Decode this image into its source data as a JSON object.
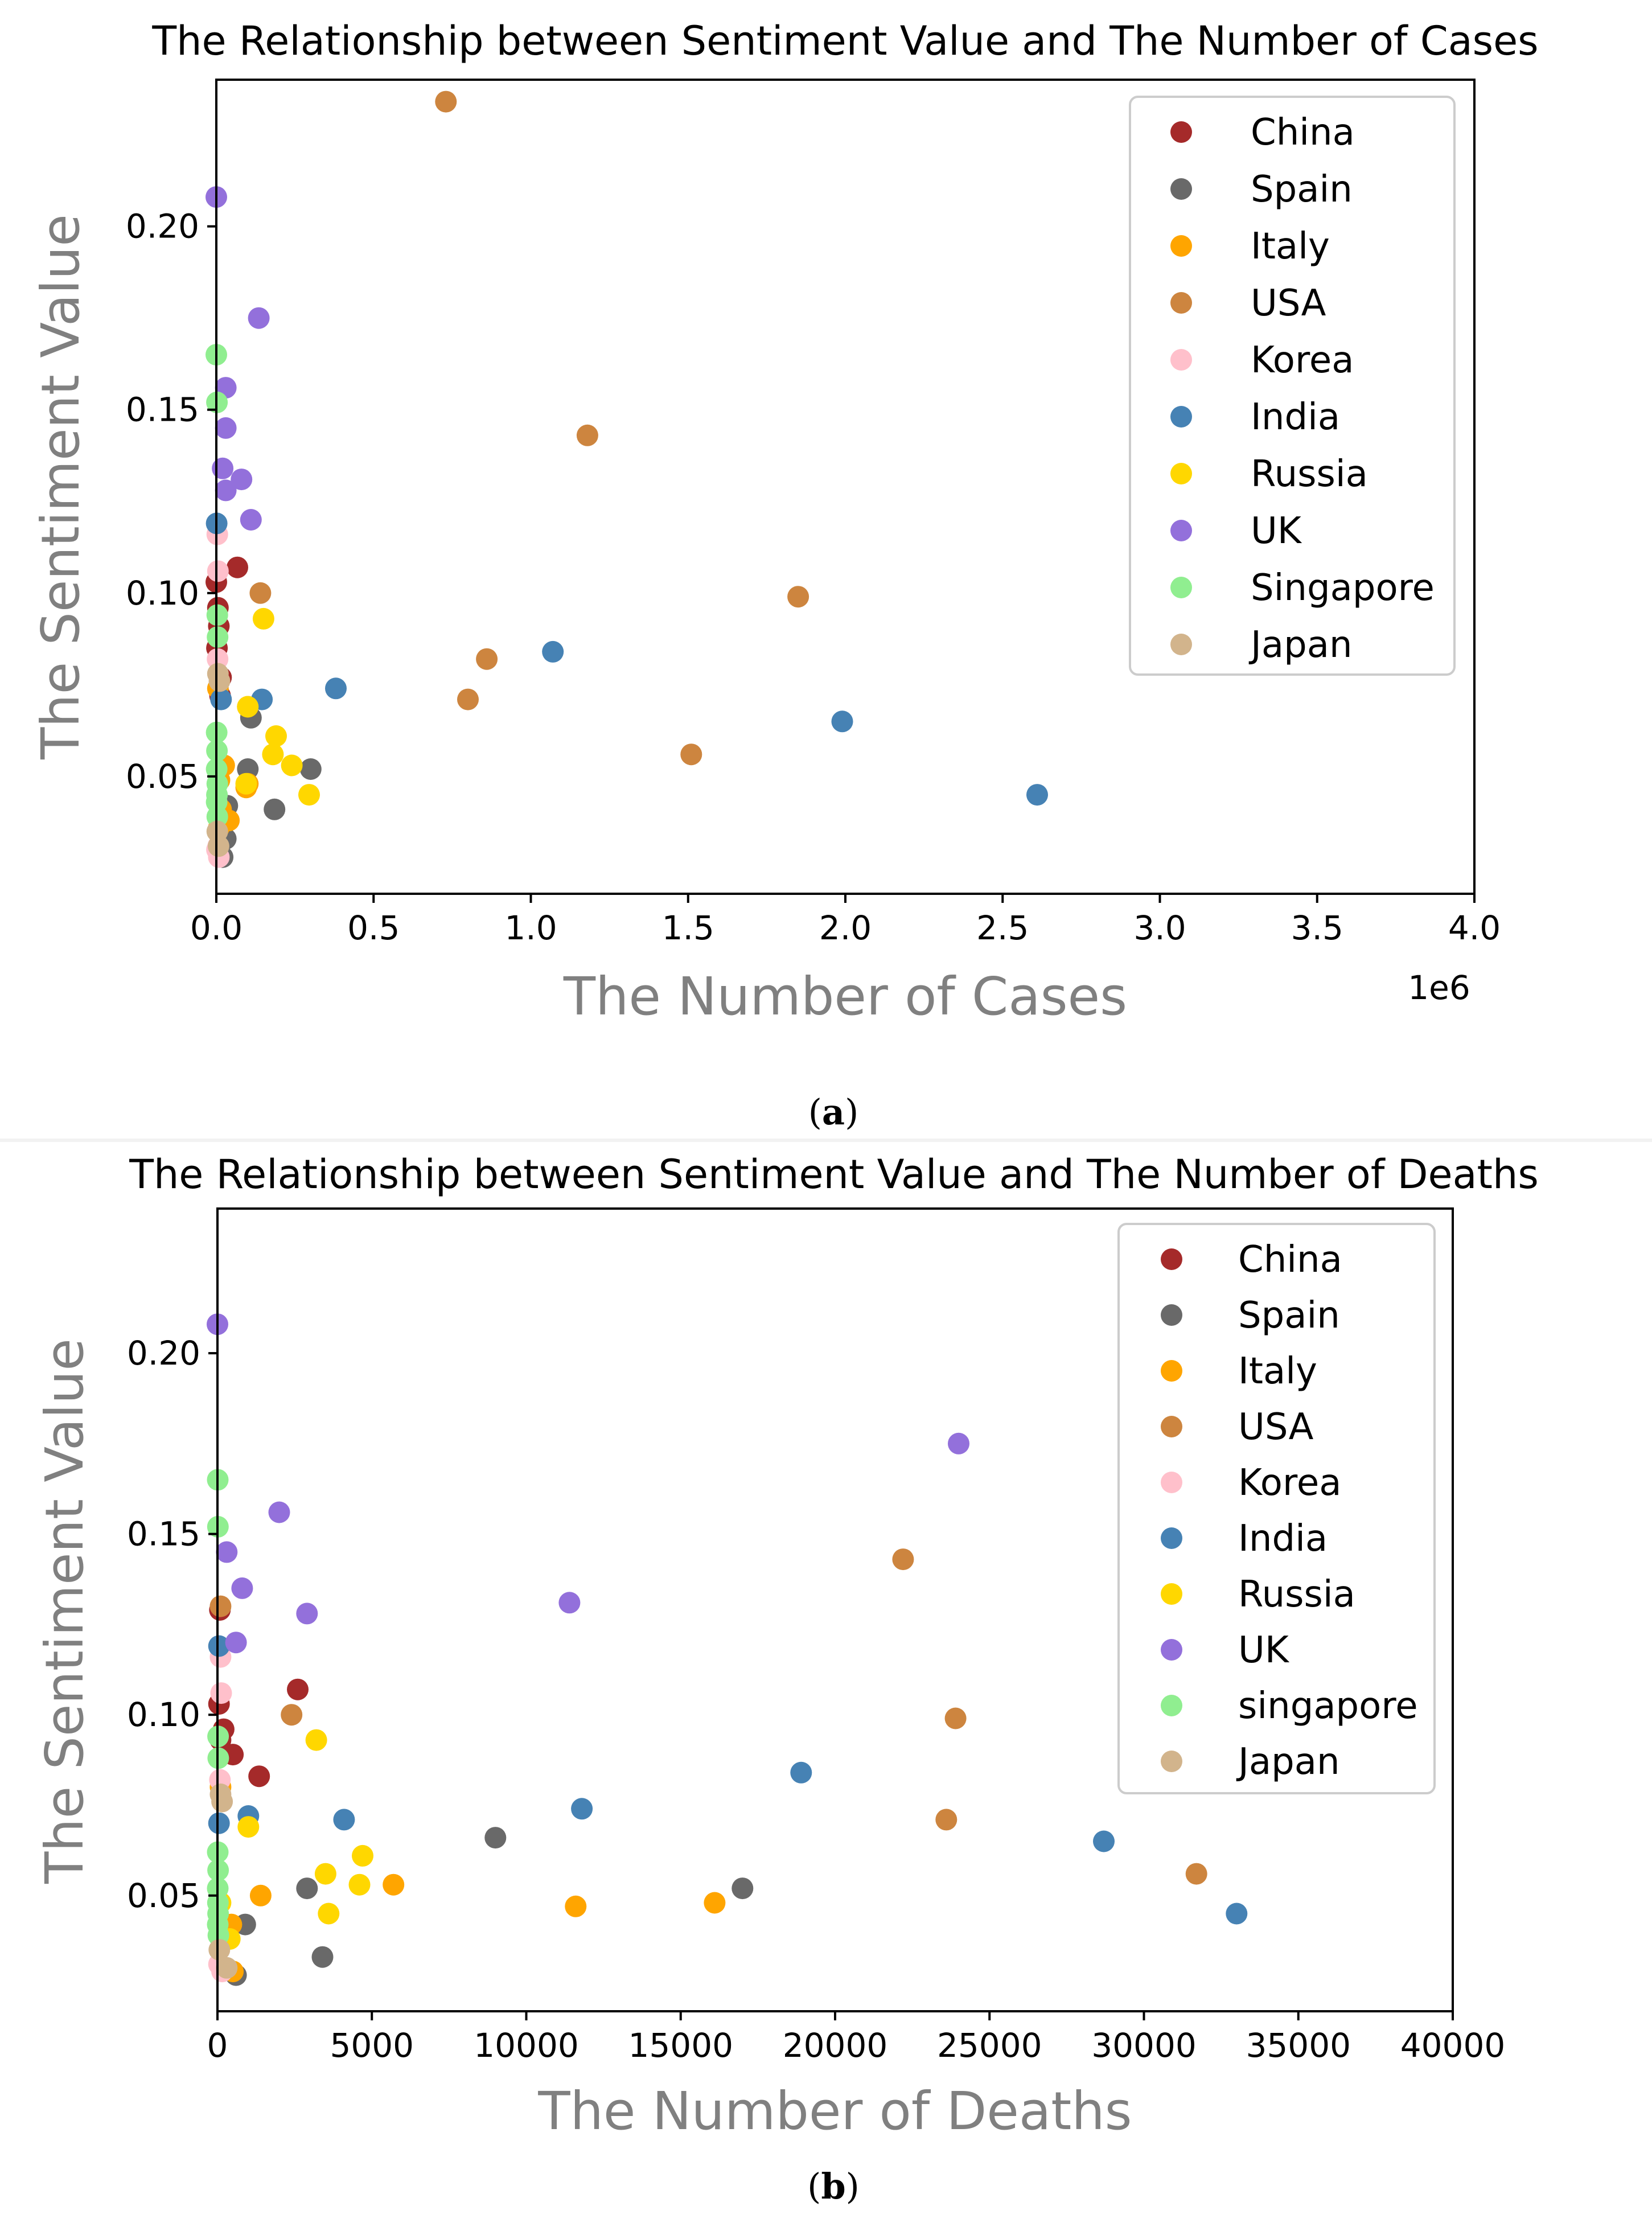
{
  "chart_data": [
    {
      "type": "scatter",
      "panel_label": "a",
      "title": "The Relationship between Sentiment Value and The Number of Cases",
      "xlabel": "The Number of Cases",
      "ylabel": "The Sentiment Value",
      "x_offset_text": "1e6",
      "x_scale": 1000000,
      "xlim": [
        0,
        4000000
      ],
      "ylim": [
        0.018,
        0.24
      ],
      "xticks": [
        0,
        500000,
        1000000,
        1500000,
        2000000,
        2500000,
        3000000,
        3500000,
        4000000
      ],
      "xtick_labels": [
        "0.0",
        "0.5",
        "1.0",
        "1.5",
        "2.0",
        "2.5",
        "3.0",
        "3.5",
        "4.0"
      ],
      "yticks": [
        0.05,
        0.1,
        0.15,
        0.2
      ],
      "ytick_labels": [
        "0.05",
        "0.10",
        "0.15",
        "0.20"
      ],
      "legend_position": "top-right",
      "series": [
        {
          "name": "China",
          "color": "#a52a2a",
          "points": [
            [
              0,
              0.103
            ],
            [
              5000,
              0.096
            ],
            [
              8000,
              0.091
            ],
            [
              12000,
              0.072
            ],
            [
              15000,
              0.077
            ],
            [
              67000,
              0.107
            ],
            [
              2000,
              0.085
            ]
          ]
        },
        {
          "name": "Spain",
          "color": "#696969",
          "points": [
            [
              20000,
              0.028
            ],
            [
              30000,
              0.033
            ],
            [
              35000,
              0.042
            ],
            [
              100000,
              0.052
            ],
            [
              110000,
              0.066
            ],
            [
              185000,
              0.041
            ],
            [
              300000,
              0.052
            ]
          ]
        },
        {
          "name": "Italy",
          "color": "#ffa500",
          "points": [
            [
              5000,
              0.074
            ],
            [
              10000,
              0.049
            ],
            [
              15000,
              0.041
            ],
            [
              25000,
              0.053
            ],
            [
              40000,
              0.038
            ],
            [
              95000,
              0.047
            ],
            [
              100000,
              0.048
            ],
            [
              100000,
              0.069
            ],
            [
              8000,
              0.036
            ]
          ]
        },
        {
          "name": "USA",
          "color": "#cd853f",
          "points": [
            [
              730000,
              0.234
            ],
            [
              1180000,
              0.143
            ],
            [
              860000,
              0.082
            ],
            [
              800000,
              0.071
            ],
            [
              1850000,
              0.099
            ],
            [
              1510000,
              0.056
            ],
            [
              140000,
              0.1
            ]
          ]
        },
        {
          "name": "Korea",
          "color": "#ffc0cb",
          "points": [
            [
              3000,
              0.116
            ],
            [
              5000,
              0.106
            ],
            [
              4000,
              0.082
            ],
            [
              6000,
              0.031
            ],
            [
              8000,
              0.028
            ],
            [
              2000,
              0.03
            ]
          ]
        },
        {
          "name": "India",
          "color": "#4682b4",
          "points": [
            [
              1000,
              0.119
            ],
            [
              15000,
              0.071
            ],
            [
              145000,
              0.071
            ],
            [
              380000,
              0.074
            ],
            [
              1070000,
              0.084
            ],
            [
              1990000,
              0.065
            ],
            [
              2610000,
              0.045
            ]
          ]
        },
        {
          "name": "Russia",
          "color": "#ffd700",
          "points": [
            [
              150000,
              0.093
            ],
            [
              100000,
              0.069
            ],
            [
              190000,
              0.061
            ],
            [
              180000,
              0.056
            ],
            [
              240000,
              0.053
            ],
            [
              295000,
              0.045
            ],
            [
              95000,
              0.048
            ]
          ]
        },
        {
          "name": "UK",
          "color": "#9370db",
          "points": [
            [
              0,
              0.208
            ],
            [
              135000,
              0.175
            ],
            [
              30000,
              0.156
            ],
            [
              30000,
              0.145
            ],
            [
              20000,
              0.134
            ],
            [
              80000,
              0.131
            ],
            [
              30000,
              0.128
            ],
            [
              110000,
              0.12
            ]
          ]
        },
        {
          "name": "Singapore",
          "color": "#90ee90",
          "points": [
            [
              0,
              0.165
            ],
            [
              2000,
              0.152
            ],
            [
              3000,
              0.094
            ],
            [
              4000,
              0.088
            ],
            [
              1000,
              0.062
            ],
            [
              2000,
              0.057
            ],
            [
              1000,
              0.052
            ],
            [
              3000,
              0.048
            ],
            [
              2000,
              0.045
            ],
            [
              1000,
              0.043
            ],
            [
              3000,
              0.039
            ]
          ]
        },
        {
          "name": "Japan",
          "color": "#d2b48c",
          "points": [
            [
              5000,
              0.078
            ],
            [
              10000,
              0.076
            ],
            [
              3000,
              0.035
            ],
            [
              7000,
              0.031
            ]
          ]
        }
      ]
    },
    {
      "type": "scatter",
      "panel_label": "b",
      "title": "The Relationship between Sentiment Value and The Number of  Deaths",
      "xlabel": "The Number of Deaths",
      "ylabel": "The Sentiment Value",
      "xlim": [
        0,
        40000
      ],
      "ylim": [
        0.018,
        0.24
      ],
      "xticks": [
        0,
        5000,
        10000,
        15000,
        20000,
        25000,
        30000,
        35000,
        40000
      ],
      "xtick_labels": [
        "0",
        "5000",
        "10000",
        "15000",
        "20000",
        "25000",
        "30000",
        "35000",
        "40000"
      ],
      "yticks": [
        0.05,
        0.1,
        0.15,
        0.2
      ],
      "ytick_labels": [
        "0.05",
        "0.10",
        "0.15",
        "0.20"
      ],
      "legend_position": "top-right",
      "series": [
        {
          "name": "China",
          "color": "#a52a2a",
          "points": [
            [
              2600,
              0.107
            ],
            [
              1350,
              0.083
            ],
            [
              500,
              0.089
            ],
            [
              200,
              0.096
            ],
            [
              50,
              0.103
            ],
            [
              100,
              0.093
            ],
            [
              80,
              0.129
            ]
          ]
        },
        {
          "name": "Spain",
          "color": "#696969",
          "points": [
            [
              600,
              0.028
            ],
            [
              900,
              0.042
            ],
            [
              2900,
              0.052
            ],
            [
              3400,
              0.033
            ],
            [
              9000,
              0.066
            ],
            [
              17000,
              0.052
            ],
            [
              350,
              0.04
            ]
          ]
        },
        {
          "name": "Italy",
          "color": "#ffa500",
          "points": [
            [
              1400,
              0.05
            ],
            [
              5700,
              0.053
            ],
            [
              11600,
              0.047
            ],
            [
              16100,
              0.048
            ],
            [
              450,
              0.042
            ],
            [
              300,
              0.038
            ],
            [
              500,
              0.029
            ],
            [
              100,
              0.08
            ]
          ]
        },
        {
          "name": "USA",
          "color": "#cd853f",
          "points": [
            [
              2400,
              0.1
            ],
            [
              22200,
              0.143
            ],
            [
              23900,
              0.099
            ],
            [
              23600,
              0.071
            ],
            [
              31700,
              0.056
            ],
            [
              100,
              0.13
            ]
          ]
        },
        {
          "name": "Korea",
          "color": "#ffc0cb",
          "points": [
            [
              100,
              0.116
            ],
            [
              120,
              0.106
            ],
            [
              80,
              0.082
            ],
            [
              150,
              0.029
            ],
            [
              50,
              0.031
            ]
          ]
        },
        {
          "name": "India",
          "color": "#4682b4",
          "points": [
            [
              50,
              0.119
            ],
            [
              1000,
              0.072
            ],
            [
              4100,
              0.071
            ],
            [
              11800,
              0.074
            ],
            [
              18900,
              0.084
            ],
            [
              28700,
              0.065
            ],
            [
              33000,
              0.045
            ],
            [
              50,
              0.07
            ]
          ]
        },
        {
          "name": "Russia",
          "color": "#ffd700",
          "points": [
            [
              3200,
              0.093
            ],
            [
              1000,
              0.069
            ],
            [
              4700,
              0.061
            ],
            [
              3500,
              0.056
            ],
            [
              4600,
              0.053
            ],
            [
              3600,
              0.045
            ],
            [
              100,
              0.048
            ],
            [
              400,
              0.038
            ]
          ]
        },
        {
          "name": "UK",
          "color": "#9370db",
          "points": [
            [
              0,
              0.208
            ],
            [
              24000,
              0.175
            ],
            [
              2000,
              0.156
            ],
            [
              300,
              0.145
            ],
            [
              800,
              0.135
            ],
            [
              11400,
              0.131
            ],
            [
              2900,
              0.128
            ],
            [
              600,
              0.12
            ]
          ]
        },
        {
          "name": "singapore",
          "color": "#90ee90",
          "points": [
            [
              10,
              0.165
            ],
            [
              15,
              0.152
            ],
            [
              20,
              0.094
            ],
            [
              25,
              0.088
            ],
            [
              10,
              0.062
            ],
            [
              20,
              0.057
            ],
            [
              10,
              0.052
            ],
            [
              15,
              0.048
            ],
            [
              20,
              0.045
            ],
            [
              10,
              0.042
            ],
            [
              30,
              0.039
            ]
          ]
        },
        {
          "name": "Japan",
          "color": "#d2b48c",
          "points": [
            [
              100,
              0.078
            ],
            [
              150,
              0.076
            ],
            [
              60,
              0.035
            ],
            [
              300,
              0.03
            ]
          ]
        }
      ]
    }
  ]
}
